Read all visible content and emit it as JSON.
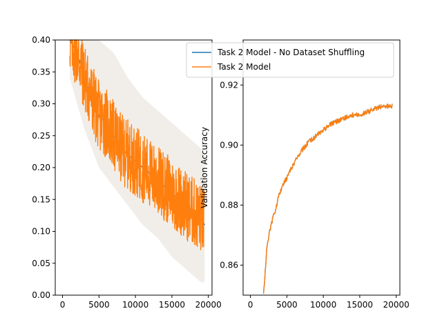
{
  "chart_data": [
    {
      "type": "line",
      "title": "",
      "xlabel": "",
      "ylabel": "",
      "xlim": [
        -1000,
        20500
      ],
      "ylim": [
        0.0,
        0.4
      ],
      "xticks": [
        0,
        5000,
        10000,
        15000,
        20000
      ],
      "xtick_labels": [
        "0",
        "5000",
        "10000",
        "15000",
        "20000"
      ],
      "yticks": [
        0.0,
        0.05,
        0.1,
        0.15,
        0.2,
        0.25,
        0.3,
        0.35,
        0.4
      ],
      "ytick_labels": [
        "0.00",
        "0.05",
        "0.10",
        "0.15",
        "0.20",
        "0.25",
        "0.30",
        "0.35",
        "0.40"
      ],
      "grid": false,
      "series": [
        {
          "name": "Task 2 Model - No Dataset Shuffling",
          "color": "#1f77b4",
          "x": [
            1000,
            2000,
            3000,
            4000,
            5000,
            6000,
            7000,
            8000,
            9000,
            10000,
            11000,
            12000,
            13000,
            14000,
            15000,
            16000,
            17000,
            18000,
            19000,
            19500
          ],
          "y": [
            0.4,
            0.38,
            0.34,
            0.31,
            0.28,
            0.27,
            0.25,
            0.23,
            0.22,
            0.21,
            0.2,
            0.19,
            0.18,
            0.17,
            0.16,
            0.15,
            0.14,
            0.13,
            0.12,
            0.11
          ]
        },
        {
          "name": "Task 2 Model",
          "color": "#ff7f0e",
          "x": [
            1000,
            2000,
            3000,
            4000,
            5000,
            6000,
            7000,
            8000,
            9000,
            10000,
            11000,
            12000,
            13000,
            14000,
            15000,
            16000,
            17000,
            18000,
            19000,
            19500
          ],
          "y": [
            0.4,
            0.38,
            0.34,
            0.31,
            0.28,
            0.27,
            0.25,
            0.23,
            0.22,
            0.21,
            0.2,
            0.19,
            0.18,
            0.17,
            0.16,
            0.15,
            0.14,
            0.13,
            0.12,
            0.11
          ],
          "noise_amplitude": 0.055
        }
      ],
      "shaded_band": {
        "color": "#d8cfc4",
        "x": [
          1000,
          3000,
          5000,
          7000,
          9000,
          11000,
          13000,
          15000,
          17000,
          19000,
          19500
        ],
        "lower": [
          0.34,
          0.26,
          0.2,
          0.17,
          0.14,
          0.11,
          0.09,
          0.06,
          0.04,
          0.02,
          0.02
        ],
        "upper": [
          0.4,
          0.4,
          0.4,
          0.38,
          0.34,
          0.31,
          0.29,
          0.27,
          0.25,
          0.23,
          0.22
        ]
      }
    },
    {
      "type": "line",
      "title": "",
      "xlabel": "",
      "ylabel": "Validation Accuracy",
      "xlim": [
        -1000,
        20500
      ],
      "ylim": [
        0.85,
        0.935
      ],
      "xticks": [
        0,
        5000,
        10000,
        15000,
        20000
      ],
      "xtick_labels": [
        "0",
        "5000",
        "10000",
        "15000",
        "20000"
      ],
      "yticks": [
        0.86,
        0.88,
        0.9,
        0.92
      ],
      "ytick_labels": [
        "0.86",
        "0.88",
        "0.90",
        "0.92"
      ],
      "grid": false,
      "series": [
        {
          "name": "Task 2 Model - No Dataset Shuffling",
          "color": "#1f77b4",
          "x": [
            1800,
            2200,
            2600,
            3000,
            3500,
            4000,
            4500,
            5000,
            6000,
            7000,
            8000,
            9000,
            10000,
            11000,
            12000,
            13000,
            14000,
            15000,
            16000,
            17000,
            18000,
            19000,
            19500
          ],
          "y": [
            0.85,
            0.864,
            0.871,
            0.875,
            0.879,
            0.884,
            0.887,
            0.889,
            0.894,
            0.898,
            0.901,
            0.903,
            0.905,
            0.907,
            0.908,
            0.909,
            0.91,
            0.91,
            0.911,
            0.912,
            0.913,
            0.913,
            0.913
          ]
        },
        {
          "name": "Task 2 Model",
          "color": "#ff7f0e",
          "x": [
            1800,
            2200,
            2600,
            3000,
            3500,
            4000,
            4500,
            5000,
            6000,
            7000,
            8000,
            9000,
            10000,
            11000,
            12000,
            13000,
            14000,
            15000,
            16000,
            17000,
            18000,
            19000,
            19500
          ],
          "y": [
            0.85,
            0.864,
            0.871,
            0.875,
            0.879,
            0.884,
            0.887,
            0.889,
            0.894,
            0.898,
            0.901,
            0.903,
            0.905,
            0.907,
            0.908,
            0.909,
            0.91,
            0.91,
            0.911,
            0.912,
            0.913,
            0.913,
            0.913
          ]
        }
      ]
    }
  ],
  "legend": {
    "placement": "top-right",
    "entries": [
      {
        "label": "Task 2 Model - No Dataset Shuffling",
        "color": "#1f77b4"
      },
      {
        "label": "Task 2 Model",
        "color": "#ff7f0e"
      }
    ]
  }
}
